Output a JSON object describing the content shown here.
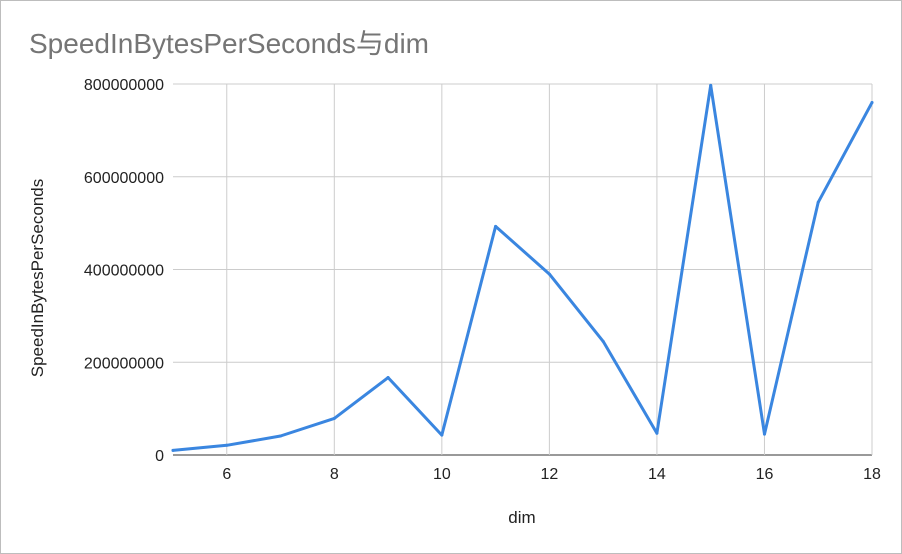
{
  "chart_data": {
    "type": "line",
    "title": "SpeedInBytesPerSeconds与dim",
    "xlabel": "dim",
    "ylabel": "SpeedInBytesPerSeconds",
    "xlim": [
      5,
      18
    ],
    "ylim": [
      0,
      800000000
    ],
    "x_ticks": [
      6,
      8,
      10,
      12,
      14,
      16,
      18
    ],
    "y_ticks": [
      0,
      200000000,
      400000000,
      600000000,
      800000000
    ],
    "grid": true,
    "legend": "none",
    "series": [
      {
        "color": "#3a86e0",
        "x": [
          5,
          6,
          7,
          8,
          9,
          10,
          11,
          12,
          13,
          14,
          15,
          16,
          17,
          18
        ],
        "y": [
          10000000,
          21000000,
          41000000,
          79000000,
          167000000,
          43000000,
          493000000,
          390000000,
          245000000,
          47000000,
          797000000,
          45000000,
          545000000,
          760000000
        ]
      }
    ]
  }
}
